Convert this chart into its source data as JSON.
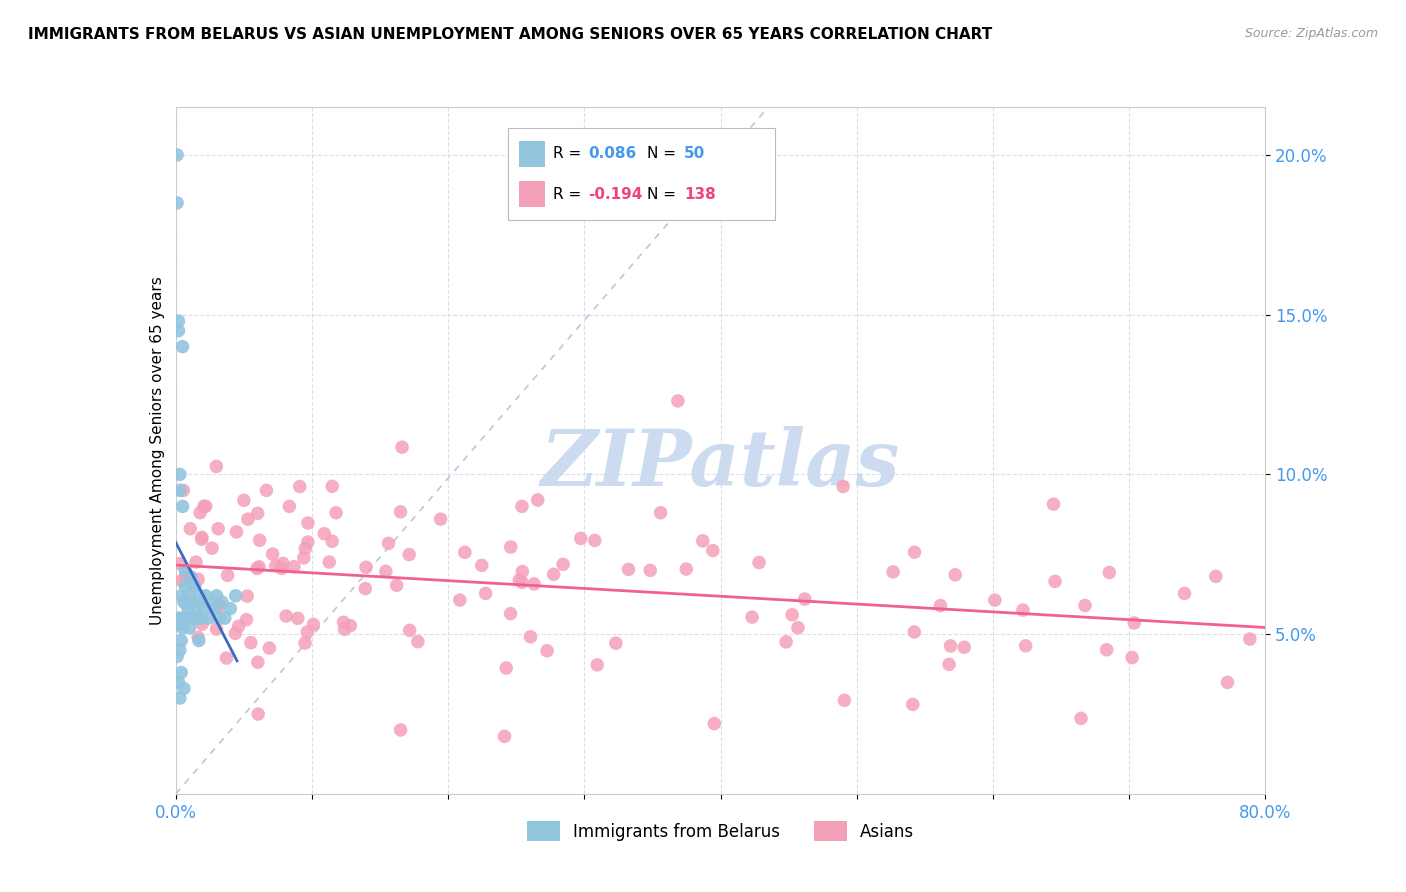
{
  "title": "IMMIGRANTS FROM BELARUS VS ASIAN UNEMPLOYMENT AMONG SENIORS OVER 65 YEARS CORRELATION CHART",
  "source": "Source: ZipAtlas.com",
  "ylabel": "Unemployment Among Seniors over 65 years",
  "blue_R": 0.086,
  "blue_N": 50,
  "pink_R": -0.194,
  "pink_N": 138,
  "blue_color": "#92C5DE",
  "pink_color": "#F4A0B8",
  "blue_line_color": "#3A6BC4",
  "pink_line_color": "#F06090",
  "diag_line_color": "#AAAACC",
  "watermark_color": "#C8D8F0",
  "tick_color": "#4499EE",
  "grid_color": "#DDDDEE",
  "legend_label_blue": "Immigrants from Belarus",
  "legend_label_pink": "Asians",
  "xlim": [
    0.0,
    0.8
  ],
  "ylim": [
    0.0,
    0.215
  ],
  "yticks": [
    0.05,
    0.1,
    0.15,
    0.2
  ],
  "ytick_labels": [
    "5.0%",
    "10.0%",
    "15.0%",
    "20.0%"
  ],
  "xticks": [
    0.0,
    0.1,
    0.2,
    0.3,
    0.4,
    0.5,
    0.6,
    0.7,
    0.8
  ],
  "xtick_labels": [
    "0.0%",
    "",
    "",
    "",
    "",
    "",
    "",
    "",
    "80.0%"
  ]
}
